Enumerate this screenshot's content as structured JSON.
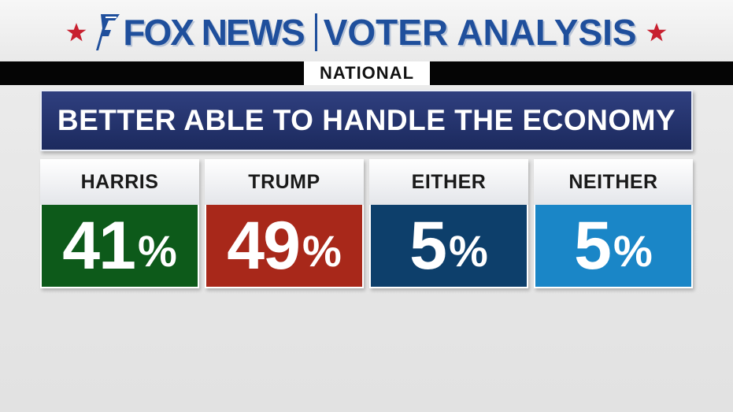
{
  "header": {
    "brand": "FOX NEWS",
    "product": "VOTER ANALYSIS",
    "region": "NATIONAL",
    "colors": {
      "brand_blue": "#1f4f9c",
      "star_red": "#c8202f"
    }
  },
  "chart_data": {
    "type": "table",
    "title": "BETTER ABLE TO HANDLE THE ECONOMY",
    "categories": [
      "HARRIS",
      "TRUMP",
      "EITHER",
      "NEITHER"
    ],
    "values": [
      41,
      49,
      5,
      5
    ],
    "unit": "%",
    "colors": [
      "#0d5a1a",
      "#a8281a",
      "#0d3f6b",
      "#1a86c7"
    ]
  }
}
